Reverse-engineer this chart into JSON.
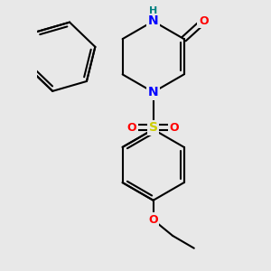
{
  "background_color": "#e8e8e8",
  "bond_color": "#000000",
  "bond_width": 1.5,
  "atom_colors": {
    "N": "#0000ff",
    "O": "#ff0000",
    "S": "#cccc00",
    "H": "#008080",
    "C": "#000000"
  },
  "xlim": [
    -2.0,
    2.0
  ],
  "ylim": [
    -3.2,
    2.2
  ],
  "fig_width": 3.0,
  "fig_height": 3.0,
  "dpi": 100,
  "bl": 0.72
}
